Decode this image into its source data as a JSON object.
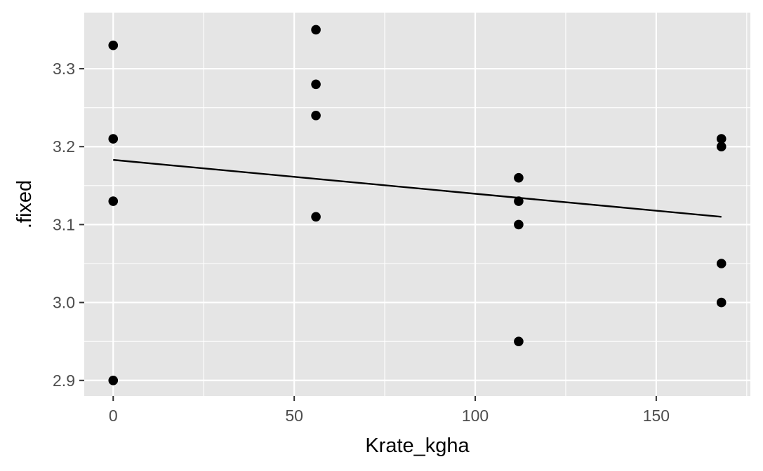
{
  "chart_data": {
    "type": "scatter",
    "title": "",
    "xlabel": "Krate_kgha",
    "ylabel": ".fixed",
    "xlim": [
      -8,
      176
    ],
    "ylim": [
      2.88,
      3.372
    ],
    "x_ticks": [
      0,
      50,
      100,
      150
    ],
    "x_tick_labels": [
      "0",
      "50",
      "100",
      "150"
    ],
    "y_ticks": [
      2.9,
      3.0,
      3.1,
      3.2,
      3.3
    ],
    "y_tick_labels": [
      "2.9",
      "3.0",
      "3.1",
      "3.2",
      "3.3"
    ],
    "grid": true,
    "legend": "none",
    "points": [
      {
        "x": 0,
        "y": 3.33
      },
      {
        "x": 0,
        "y": 3.21
      },
      {
        "x": 0,
        "y": 3.13
      },
      {
        "x": 0,
        "y": 2.9
      },
      {
        "x": 56,
        "y": 3.35
      },
      {
        "x": 56,
        "y": 3.28
      },
      {
        "x": 56,
        "y": 3.24
      },
      {
        "x": 56,
        "y": 3.11
      },
      {
        "x": 112,
        "y": 3.16
      },
      {
        "x": 112,
        "y": 3.13
      },
      {
        "x": 112,
        "y": 3.1
      },
      {
        "x": 112,
        "y": 2.95
      },
      {
        "x": 168,
        "y": 3.21
      },
      {
        "x": 168,
        "y": 3.2
      },
      {
        "x": 168,
        "y": 3.05
      },
      {
        "x": 168,
        "y": 3.0
      }
    ],
    "fit_line": [
      {
        "x": 0,
        "y": 3.183
      },
      {
        "x": 168,
        "y": 3.11
      }
    ],
    "colors": {
      "panel_background": "#e5e5e5",
      "grid": "#ffffff",
      "points": "#000000",
      "fit_line": "#000000",
      "tick_text": "#4d4d4d",
      "axis_text": "#000000"
    }
  }
}
